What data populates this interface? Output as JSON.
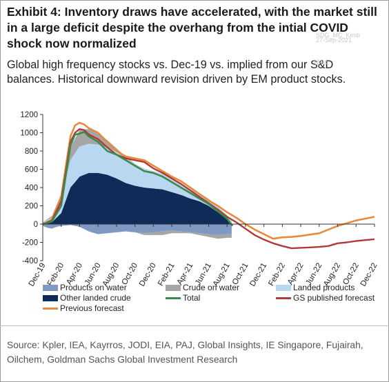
{
  "title": "Exhibit 4: Inventory draws have accelerated, with the market still in a large deficit despite the overhang from the intial COVID shock now normalized",
  "subtitle": "Global high frequency stocks vs. Dec-19 vs. implied from our S&D balances. Historical downward revision driven by EM product stocks.",
  "watermark": {
    "line1": "SDG_MC_Kimb",
    "line2": "27-Sep-2021",
    "line3": "@Sc"
  },
  "source": "Source: Kpler, IEA, Kayrros, JODI, EIA, PAJ, Global Insights, IE Singapore, Fujairah, Oilchem, Goldman Sachs Global Investment Research",
  "colors": {
    "products_on_water": "#7f99c4",
    "crude_on_water": "#a6a6a6",
    "landed_products": "#b9d7f0",
    "other_landed_crude": "#0f2b57",
    "total": "#3a8a4a",
    "gs_forecast": "#b03a3a",
    "previous_forecast": "#e88a3c"
  },
  "chart_data": {
    "type": "area",
    "ylim": [
      -400,
      1200
    ],
    "yticks": [
      -400,
      -200,
      0,
      200,
      400,
      600,
      800,
      1000,
      1200
    ],
    "xticks": [
      "Dec-19",
      "Feb-20",
      "Apr-20",
      "Jun-20",
      "Aug-20",
      "Oct-20",
      "Dec-20",
      "Feb-21",
      "Apr-21",
      "Jun-21",
      "Aug-21",
      "Oct-21",
      "Dec-21",
      "Feb-22",
      "Apr-22",
      "Jun-22",
      "Aug-22",
      "Oct-22",
      "Dec-22"
    ],
    "x_month_index": [
      0,
      1,
      2,
      3,
      4,
      5,
      6,
      7,
      8,
      9,
      10,
      11,
      12,
      13,
      14,
      15,
      16,
      17,
      18,
      19,
      20,
      21,
      22,
      23,
      24,
      25,
      26,
      27,
      28,
      29,
      30,
      31,
      32,
      33,
      34,
      35,
      36
    ],
    "legend": [
      {
        "key": "products_on_water",
        "label": "Products on water",
        "kind": "area"
      },
      {
        "key": "crude_on_water",
        "label": "Crude on water",
        "kind": "area"
      },
      {
        "key": "landed_products",
        "label": "Landed products",
        "kind": "area"
      },
      {
        "key": "other_landed_crude",
        "label": "Other landed crude",
        "kind": "area"
      },
      {
        "key": "total",
        "label": "Total",
        "kind": "line"
      },
      {
        "key": "gs_forecast",
        "label": "GS published forecast",
        "kind": "line"
      },
      {
        "key": "previous_forecast",
        "label": "Previous forecast",
        "kind": "line"
      }
    ],
    "series": [
      {
        "key": "products_on_water",
        "points": [
          [
            0,
            -20
          ],
          [
            0.5,
            -40
          ],
          [
            1,
            -50
          ],
          [
            1.5,
            -30
          ],
          [
            2,
            -20
          ],
          [
            3,
            -10
          ],
          [
            4,
            -30
          ],
          [
            5,
            -80
          ],
          [
            6,
            -110
          ],
          [
            7,
            -100
          ],
          [
            8,
            -90
          ],
          [
            9,
            -80
          ],
          [
            10,
            -90
          ],
          [
            11,
            -100
          ],
          [
            12,
            -90
          ],
          [
            13,
            -80
          ],
          [
            14,
            -70
          ],
          [
            15,
            -80
          ],
          [
            16,
            -90
          ],
          [
            17,
            -100
          ],
          [
            18,
            -110
          ],
          [
            19,
            -120
          ],
          [
            20,
            -110
          ],
          [
            20.5,
            -110
          ]
        ]
      },
      {
        "key": "crude_on_water",
        "points": [
          [
            0,
            0
          ],
          [
            1,
            20
          ],
          [
            2,
            60
          ],
          [
            3,
            140
          ],
          [
            4,
            180
          ],
          [
            5,
            160
          ],
          [
            6,
            120
          ],
          [
            7,
            80
          ],
          [
            8,
            40
          ],
          [
            9,
            20
          ],
          [
            10,
            0
          ],
          [
            11,
            -20
          ],
          [
            12,
            -30
          ],
          [
            13,
            -40
          ],
          [
            14,
            -30
          ],
          [
            15,
            -20
          ],
          [
            16,
            -10
          ],
          [
            17,
            -20
          ],
          [
            18,
            -30
          ],
          [
            19,
            -40
          ],
          [
            20,
            -40
          ],
          [
            20.5,
            -40
          ]
        ]
      },
      {
        "key": "landed_products",
        "points": [
          [
            0,
            20
          ],
          [
            1,
            50
          ],
          [
            2,
            150
          ],
          [
            3,
            300
          ],
          [
            4,
            330
          ],
          [
            5,
            320
          ],
          [
            6,
            310
          ],
          [
            7,
            300
          ],
          [
            8,
            290
          ],
          [
            9,
            270
          ],
          [
            10,
            240
          ],
          [
            11,
            210
          ],
          [
            12,
            190
          ],
          [
            13,
            170
          ],
          [
            14,
            140
          ],
          [
            15,
            120
          ],
          [
            16,
            100
          ],
          [
            17,
            90
          ],
          [
            18,
            80
          ],
          [
            19,
            60
          ],
          [
            20,
            40
          ],
          [
            20.5,
            30
          ]
        ]
      },
      {
        "key": "other_landed_crude",
        "points": [
          [
            0,
            0
          ],
          [
            1,
            20
          ],
          [
            2,
            120
          ],
          [
            3,
            400
          ],
          [
            4,
            520
          ],
          [
            5,
            560
          ],
          [
            6,
            560
          ],
          [
            7,
            540
          ],
          [
            8,
            500
          ],
          [
            9,
            450
          ],
          [
            10,
            420
          ],
          [
            11,
            400
          ],
          [
            12,
            390
          ],
          [
            13,
            380
          ],
          [
            14,
            350
          ],
          [
            15,
            320
          ],
          [
            16,
            280
          ],
          [
            17,
            250
          ],
          [
            18,
            200
          ],
          [
            19,
            130
          ],
          [
            20,
            60
          ],
          [
            20.5,
            10
          ]
        ]
      },
      {
        "key": "total",
        "points": [
          [
            0,
            0
          ],
          [
            1,
            30
          ],
          [
            2,
            200
          ],
          [
            3,
            860
          ],
          [
            3.5,
            980
          ],
          [
            4,
            990
          ],
          [
            4.5,
            1010
          ],
          [
            5,
            960
          ],
          [
            6,
            900
          ],
          [
            7,
            800
          ],
          [
            8,
            760
          ],
          [
            9,
            700
          ],
          [
            10,
            640
          ],
          [
            11,
            580
          ],
          [
            12,
            560
          ],
          [
            13,
            520
          ],
          [
            14,
            460
          ],
          [
            15,
            400
          ],
          [
            16,
            340
          ],
          [
            17,
            280
          ],
          [
            18,
            220
          ],
          [
            19,
            140
          ],
          [
            20,
            60
          ],
          [
            20.6,
            -20
          ]
        ]
      },
      {
        "key": "gs_forecast",
        "points": [
          [
            0,
            0
          ],
          [
            1,
            40
          ],
          [
            2,
            250
          ],
          [
            3,
            900
          ],
          [
            3.5,
            1000
          ],
          [
            4,
            1040
          ],
          [
            4.5,
            1030
          ],
          [
            5,
            980
          ],
          [
            6,
            930
          ],
          [
            7,
            840
          ],
          [
            8,
            760
          ],
          [
            9,
            720
          ],
          [
            10,
            700
          ],
          [
            11,
            680
          ],
          [
            12,
            610
          ],
          [
            13,
            560
          ],
          [
            14,
            500
          ],
          [
            15,
            440
          ],
          [
            16,
            370
          ],
          [
            17,
            300
          ],
          [
            18,
            230
          ],
          [
            19,
            160
          ],
          [
            20,
            80
          ],
          [
            21,
            20
          ],
          [
            22,
            -50
          ],
          [
            23,
            -120
          ],
          [
            24,
            -170
          ],
          [
            25,
            -210
          ],
          [
            26,
            -240
          ],
          [
            27,
            -265
          ],
          [
            28,
            -260
          ],
          [
            29,
            -255
          ],
          [
            30,
            -250
          ],
          [
            31,
            -240
          ],
          [
            32,
            -210
          ],
          [
            33,
            -200
          ],
          [
            34,
            -185
          ],
          [
            35,
            -175
          ],
          [
            36,
            -165
          ]
        ]
      },
      {
        "key": "previous_forecast",
        "points": [
          [
            0,
            0
          ],
          [
            1,
            50
          ],
          [
            2,
            300
          ],
          [
            3,
            960
          ],
          [
            3.5,
            1080
          ],
          [
            4,
            1110
          ],
          [
            4.5,
            1090
          ],
          [
            5,
            1050
          ],
          [
            6,
            1000
          ],
          [
            7,
            900
          ],
          [
            8,
            800
          ],
          [
            9,
            740
          ],
          [
            10,
            720
          ],
          [
            11,
            700
          ],
          [
            12,
            640
          ],
          [
            13,
            580
          ],
          [
            14,
            520
          ],
          [
            15,
            470
          ],
          [
            16,
            400
          ],
          [
            17,
            330
          ],
          [
            18,
            260
          ],
          [
            19,
            200
          ],
          [
            20,
            130
          ],
          [
            21,
            70
          ],
          [
            22,
            0
          ],
          [
            23,
            -60
          ],
          [
            24,
            -110
          ],
          [
            25,
            -160
          ],
          [
            26,
            -145
          ],
          [
            27,
            -140
          ],
          [
            28,
            -130
          ],
          [
            29,
            -115
          ],
          [
            30,
            -100
          ],
          [
            31,
            -60
          ],
          [
            32,
            -20
          ],
          [
            33,
            10
          ],
          [
            34,
            40
          ],
          [
            35,
            60
          ],
          [
            36,
            80
          ]
        ]
      }
    ]
  }
}
